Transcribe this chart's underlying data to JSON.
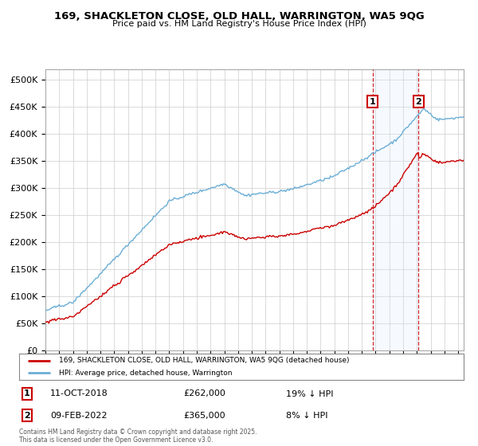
{
  "title1": "169, SHACKLETON CLOSE, OLD HALL, WARRINGTON, WA5 9QG",
  "title2": "Price paid vs. HM Land Registry's House Price Index (HPI)",
  "ylim": [
    0,
    520000
  ],
  "yticks": [
    0,
    50000,
    100000,
    150000,
    200000,
    250000,
    300000,
    350000,
    400000,
    450000,
    500000
  ],
  "ytick_labels": [
    "£0",
    "£50K",
    "£100K",
    "£150K",
    "£200K",
    "£250K",
    "£300K",
    "£350K",
    "£400K",
    "£450K",
    "£500K"
  ],
  "hpi_color": "#6baed6",
  "price_color": "#cc0000",
  "marker1_year": 2018.78,
  "marker2_year": 2022.11,
  "marker1_price": 262000,
  "marker2_price": 365000,
  "marker1_label": "11-OCT-2018",
  "marker1_value": "£262,000",
  "marker1_note": "19% ↓ HPI",
  "marker2_label": "09-FEB-2022",
  "marker2_value": "£365,000",
  "marker2_note": "8% ↓ HPI",
  "legend_price_text": "169, SHACKLETON CLOSE, OLD HALL, WARRINGTON, WA5 9QG (detached house)",
  "legend_hpi_text": "HPI: Average price, detached house, Warrington",
  "footnote": "Contains HM Land Registry data © Crown copyright and database right 2025.\nThis data is licensed under the Open Government Licence v3.0.",
  "bg_color": "#ffffff",
  "grid_color": "#cccccc",
  "shade_color": "#ddeeff",
  "marker_dashed_color": "#cc0000",
  "xstart": 1995,
  "xend": 2025
}
